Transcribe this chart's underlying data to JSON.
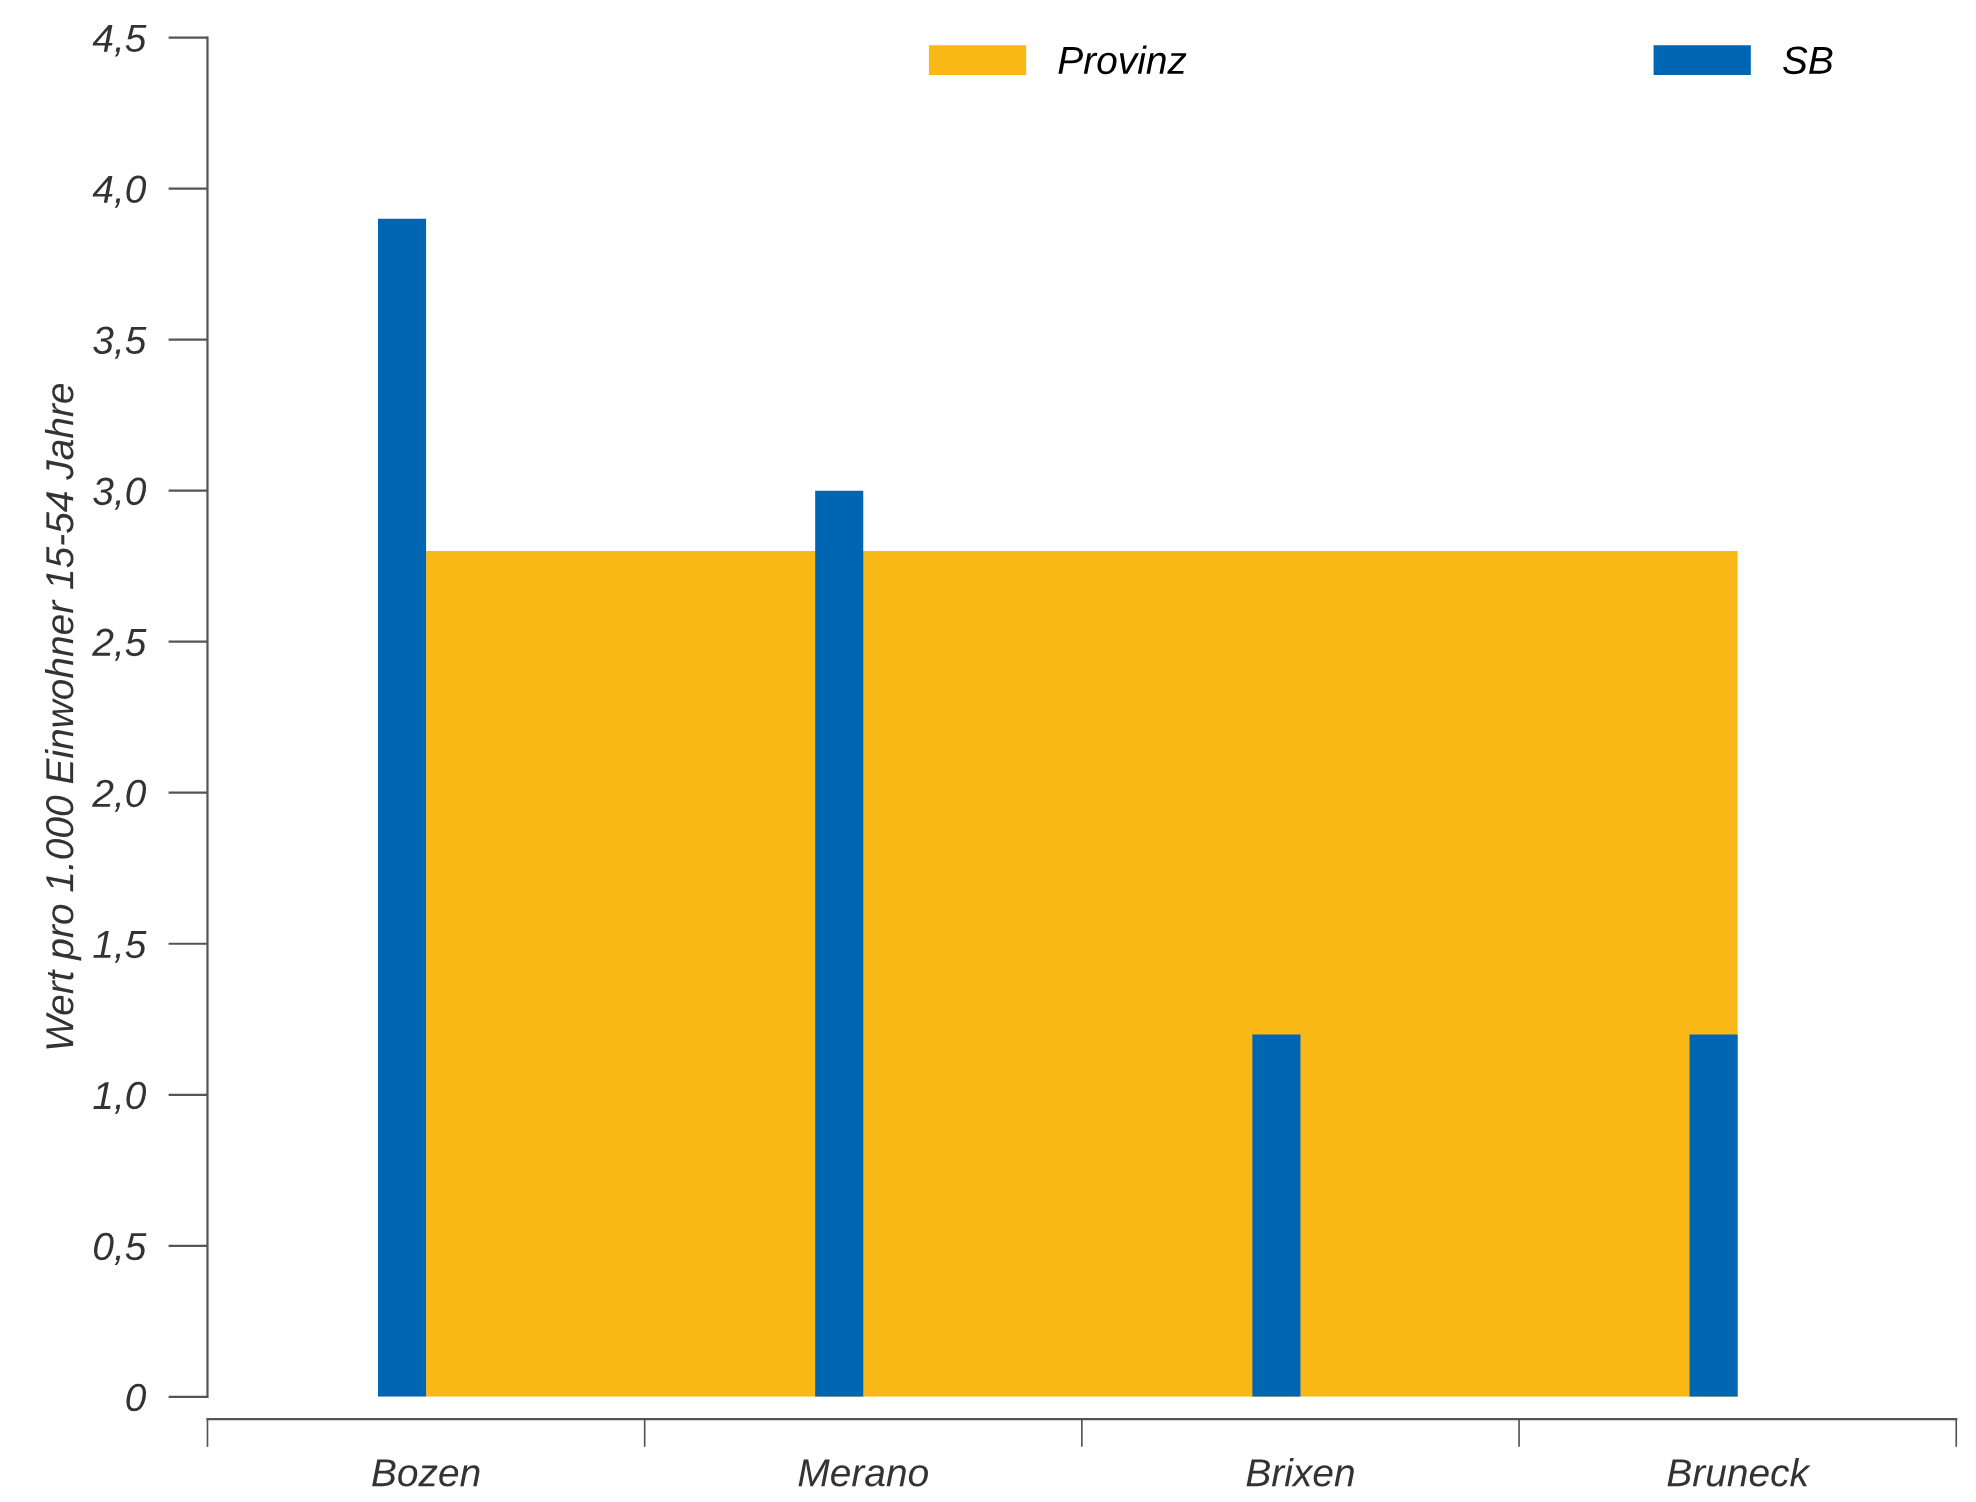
{
  "chart_data": {
    "type": "bar",
    "ylabel": "Wert pro 1.000 Einwohner 15-54 Jahre",
    "categories": [
      "Bozen",
      "Merano",
      "Brixen",
      "Bruneck"
    ],
    "series": [
      {
        "name": "Provinz",
        "type": "area",
        "color": "#f9b816",
        "values": [
          2.8,
          2.8,
          2.8,
          2.8
        ]
      },
      {
        "name": "SB",
        "color": "#0066b3",
        "values": [
          3.9,
          3.0,
          1.2,
          1.2
        ]
      }
    ],
    "ylim": [
      0,
      4.5
    ],
    "yticks": [
      {
        "value": 0,
        "label": "0"
      },
      {
        "value": 0.5,
        "label": "0,5"
      },
      {
        "value": 1,
        "label": "1,0"
      },
      {
        "value": 1.5,
        "label": "1,5"
      },
      {
        "value": 2,
        "label": "2,0"
      },
      {
        "value": 2.5,
        "label": "2,5"
      },
      {
        "value": 3,
        "label": "3,0"
      },
      {
        "value": 3.5,
        "label": "3,5"
      },
      {
        "value": 4,
        "label": "4,0"
      },
      {
        "value": 4.5,
        "label": "4,5"
      }
    ],
    "grid": false,
    "legend": "top right"
  }
}
